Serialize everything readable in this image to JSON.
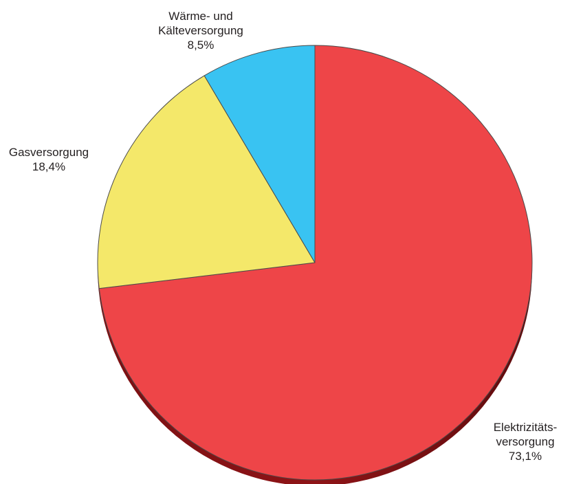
{
  "chart_data": {
    "type": "pie",
    "unit": "%",
    "slices": [
      {
        "lines": [
          "Elektrizitäts-",
          "versorgung"
        ],
        "value_label": "73,1%",
        "value": 73.1,
        "color": "#ee4548"
      },
      {
        "lines": [
          "Gasversorgung"
        ],
        "value_label": "18,4%",
        "value": 18.4,
        "color": "#f4e86a"
      },
      {
        "lines": [
          "Wärme- und",
          "Kälteversorgung"
        ],
        "value_label": "8,5%",
        "value": 8.5,
        "color": "#39c3f2"
      }
    ]
  }
}
